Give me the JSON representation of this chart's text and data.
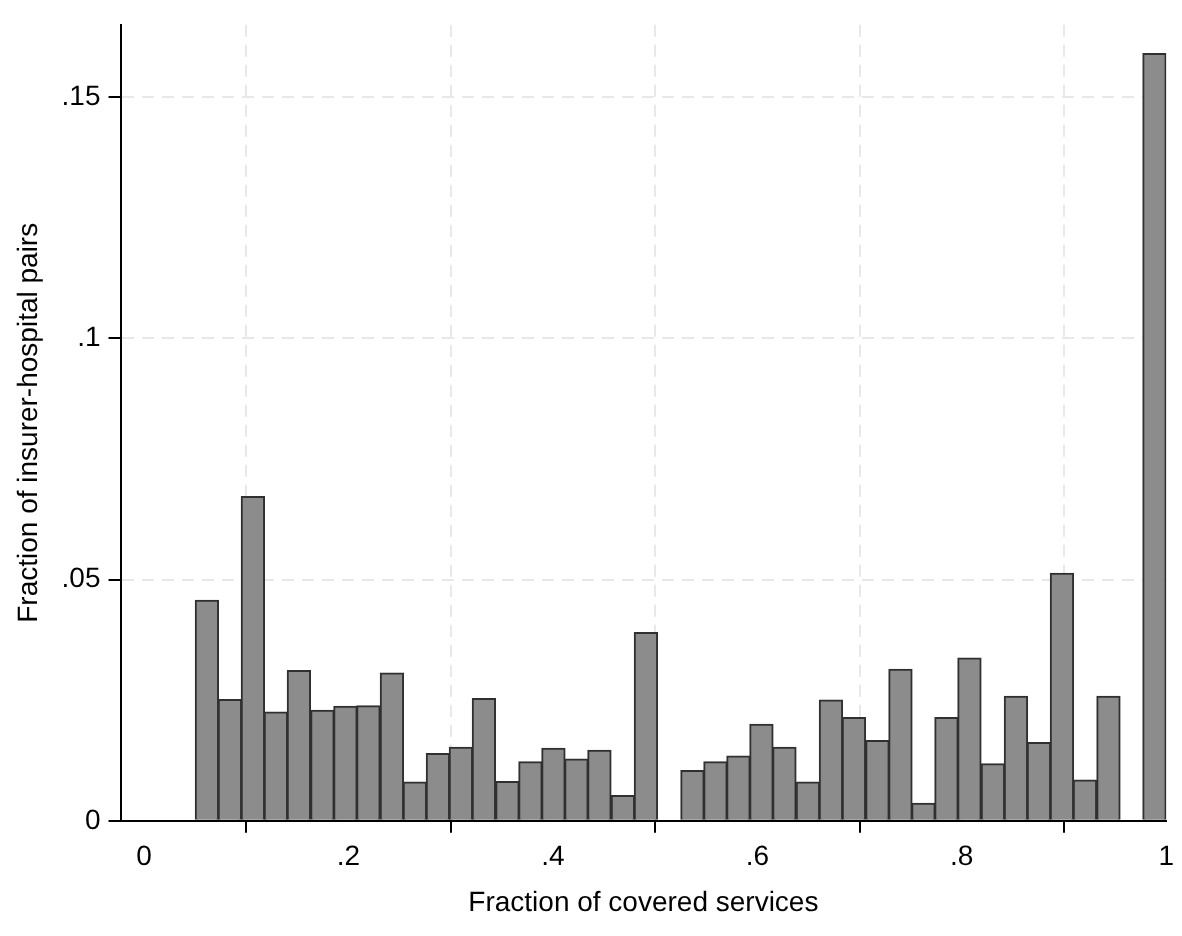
{
  "chart_data": {
    "type": "histogram",
    "xlabel": "Fraction of covered services",
    "ylabel": "Fraction of insurer-hospital pairs",
    "bins": [
      0.05,
      0.073,
      0.095,
      0.118,
      0.14,
      0.163,
      0.186,
      0.208,
      0.231,
      0.254,
      0.276,
      0.299,
      0.321,
      0.344,
      0.367,
      0.389,
      0.412,
      0.434,
      0.457,
      0.48,
      0.502,
      0.525,
      0.548,
      0.57,
      0.593,
      0.615,
      0.638,
      0.661,
      0.683,
      0.706,
      0.729,
      0.751,
      0.774,
      0.796,
      0.819,
      0.842,
      0.864,
      0.887,
      0.909,
      0.932,
      0.955,
      0.977,
      1.0
    ],
    "values": [
      0.0457,
      0.0251,
      0.0672,
      0.0225,
      0.0311,
      0.0229,
      0.0237,
      0.0238,
      0.0306,
      0.008,
      0.0139,
      0.0152,
      0.0253,
      0.0081,
      0.0122,
      0.015,
      0.0128,
      0.0146,
      0.0052,
      0.039,
      0,
      0.0104,
      0.0122,
      0.0134,
      0.02,
      0.0152,
      0.008,
      0.025,
      0.0214,
      0.0166,
      0.0314,
      0.0036,
      0.0214,
      0.0337,
      0.0118,
      0.0258,
      0.0162,
      0.0513,
      0.0084,
      0.0258,
      0,
      0.159
    ],
    "color": "#8c8c8c",
    "xlim": [
      -0.023,
      1.0
    ],
    "xticks": [
      0,
      {
        "value": 0.2,
        "label": ".2"
      },
      {
        "value": 0.4,
        "label": ".4"
      },
      {
        "value": 0.6,
        "label": ".6"
      },
      {
        "value": 0.8,
        "label": ".8"
      },
      1
    ],
    "ylim": [
      0,
      0.165
    ],
    "yticks": [
      0,
      {
        "value": 0.05,
        "label": ".05"
      },
      {
        "value": 0.1,
        "label": ".1"
      },
      {
        "value": 0.15,
        "label": ".15"
      }
    ],
    "grid": true,
    "legend": false
  }
}
